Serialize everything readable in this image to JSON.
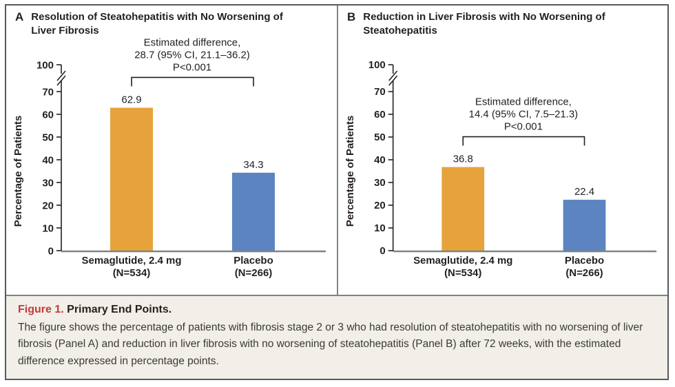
{
  "colors": {
    "bar_semaglutide": "#E6A33C",
    "bar_placebo": "#5B84C1",
    "ink": "#231F20",
    "axis_gray": "#808285",
    "accent_red": "#C1393E",
    "caption_bg": "#F2EFE8",
    "outer_border": "#58595B"
  },
  "chart_data": [
    {
      "type": "bar",
      "panel": "A",
      "title": "Resolution of Steatohepatitis with No Worsening of Liver Fibrosis",
      "ylabel": "Percentage of Patients",
      "ylim": [
        0,
        70
      ],
      "yticks": [
        0,
        10,
        20,
        30,
        40,
        50,
        60,
        70
      ],
      "ybreak_top_label": "100",
      "axis_break": true,
      "grid": false,
      "categories": [
        [
          "Semaglutide, 2.4 mg",
          "(N=534)"
        ],
        [
          "Placebo",
          "(N=266)"
        ]
      ],
      "values": [
        62.9,
        34.3
      ],
      "value_labels": [
        "62.9",
        "34.3"
      ],
      "bar_colors": [
        "#E6A33C",
        "#5B84C1"
      ],
      "annotation": {
        "lines": [
          "Estimated difference,",
          "28.7 (95% CI, 21.1–36.2)",
          "P<0.001"
        ]
      }
    },
    {
      "type": "bar",
      "panel": "B",
      "title": "Reduction in Liver Fibrosis with No Worsening of Steatohepatitis",
      "ylabel": "Percentage of Patients",
      "ylim": [
        0,
        70
      ],
      "yticks": [
        0,
        10,
        20,
        30,
        40,
        50,
        60,
        70
      ],
      "ybreak_top_label": "100",
      "axis_break": true,
      "grid": false,
      "categories": [
        [
          "Semaglutide, 2.4 mg",
          "(N=534)"
        ],
        [
          "Placebo",
          "(N=266)"
        ]
      ],
      "values": [
        36.8,
        22.4
      ],
      "value_labels": [
        "36.8",
        "22.4"
      ],
      "bar_colors": [
        "#E6A33C",
        "#5B84C1"
      ],
      "annotation": {
        "lines": [
          "Estimated difference,",
          "14.4 (95% CI, 7.5–21.3)",
          "P<0.001"
        ]
      }
    }
  ],
  "caption": {
    "figure_label": "Figure 1.",
    "figure_title": "Primary End Points.",
    "body": "The figure shows the percentage of patients with fibrosis stage 2 or 3 who had resolution of steatohepatitis with no worsening of liver fibrosis (Panel A) and reduction in liver fibrosis with no worsening of steatohepatitis (Panel B) after 72 weeks, with the estimated difference expressed in percentage points."
  }
}
